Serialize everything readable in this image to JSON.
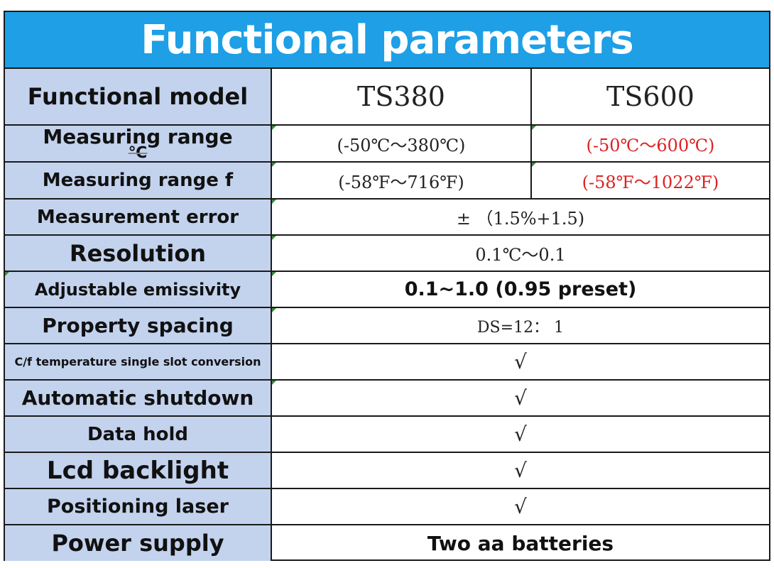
{
  "title": "Functional parameters",
  "header": {
    "label": "Functional model",
    "col1": "TS380",
    "col2": "TS600"
  },
  "rows": [
    {
      "label": "Measuring range",
      "label_unit": "℃",
      "col1": "(-50℃～380℃)",
      "col2": "(-50℃～600℃)"
    },
    {
      "label": "Measuring range f",
      "col1": "(-58℉～716℉)",
      "col2": "(-58℉～1022℉)"
    },
    {
      "label": "Measurement error",
      "value": "± （1.5%+1.5)"
    },
    {
      "label": "Resolution",
      "value": "0.1℃～0.1"
    },
    {
      "label": "Adjustable emissivity",
      "value": "0.1~1.0 (0.95 preset)"
    },
    {
      "label": "Property spacing",
      "value": "DS=12： 1"
    },
    {
      "label": "C/f temperature single slot conversion",
      "value": "√"
    },
    {
      "label": "Automatic shutdown",
      "value": "√"
    },
    {
      "label": "Data hold",
      "value": "√"
    },
    {
      "label": "Lcd backlight",
      "value": "√"
    },
    {
      "label": "Positioning laser",
      "value": "√"
    },
    {
      "label": "Power supply",
      "value": "Two aa batteries"
    }
  ],
  "colors": {
    "banner": "#1e9fe6",
    "label_bg": "#c3d3ee",
    "highlight": "#dd2222"
  }
}
